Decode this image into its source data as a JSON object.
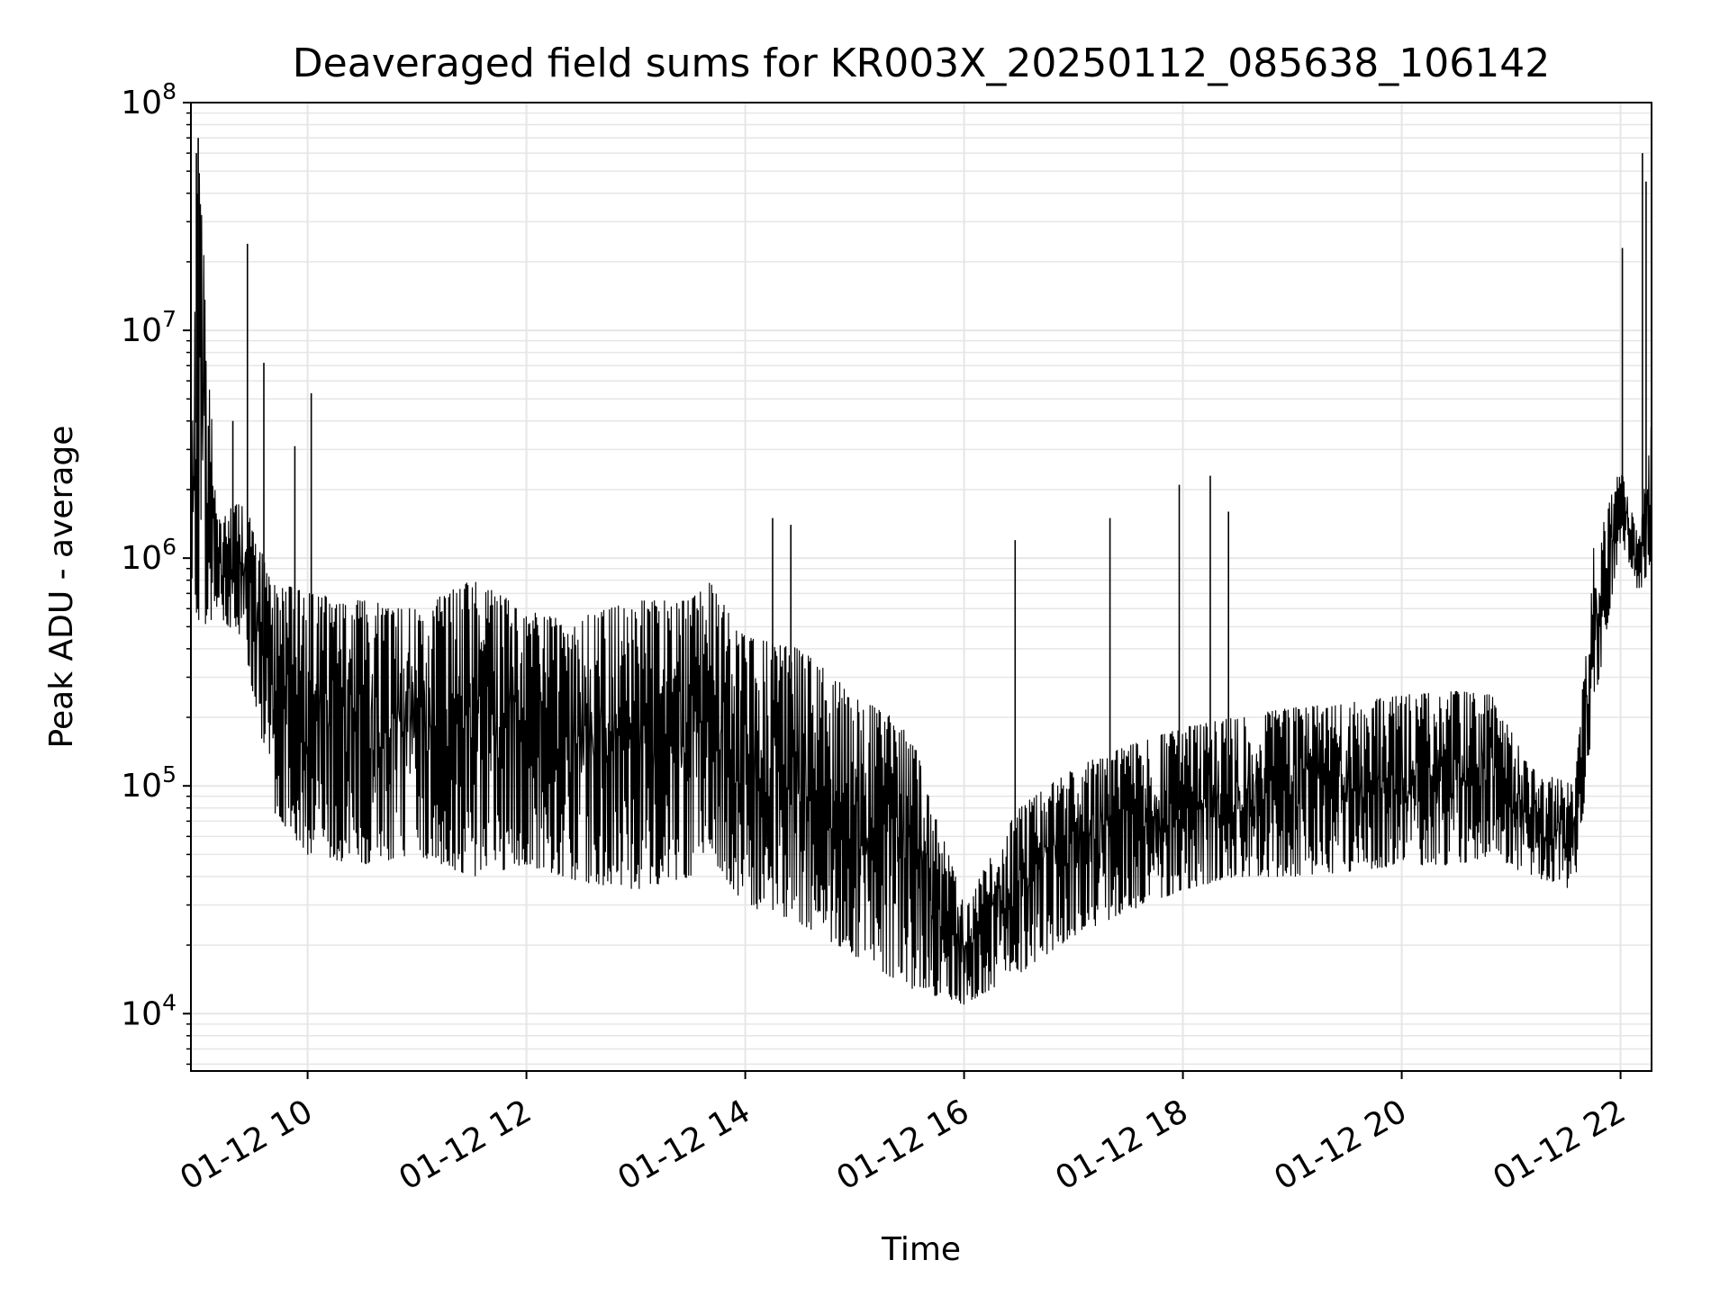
{
  "chart_data": {
    "type": "line",
    "title": "Deaveraged field sums for KR003X_20250112_085638_106142",
    "xlabel": "Time",
    "ylabel": "Peak ADU - average",
    "yscale": "log",
    "ylim": [
      5600,
      100000000
    ],
    "xlim": [
      "2025-01-12 08:56",
      "2025-01-12 22:17"
    ],
    "grid": true,
    "line_color": "#000000",
    "grid_color": "#e6e6e6",
    "x_ticks": [
      {
        "t": "2025-01-12 10:00",
        "label": "01-12 10"
      },
      {
        "t": "2025-01-12 12:00",
        "label": "01-12 12"
      },
      {
        "t": "2025-01-12 14:00",
        "label": "01-12 14"
      },
      {
        "t": "2025-01-12 16:00",
        "label": "01-12 16"
      },
      {
        "t": "2025-01-12 18:00",
        "label": "01-12 18"
      },
      {
        "t": "2025-01-12 20:00",
        "label": "01-12 20"
      },
      {
        "t": "2025-01-12 22:00",
        "label": "01-12 22"
      }
    ],
    "y_ticks": [
      {
        "value": 10000,
        "base": "10",
        "exp": "4"
      },
      {
        "value": 100000,
        "base": "10",
        "exp": "5"
      },
      {
        "value": 1000000,
        "base": "10",
        "exp": "6"
      },
      {
        "value": 10000000,
        "base": "10",
        "exp": "7"
      },
      {
        "value": 100000000,
        "base": "10",
        "exp": "8"
      }
    ],
    "series": [
      {
        "envelope": [
          {
            "t": "2025-01-12 08:56",
            "low": 900000,
            "high": 1700000
          },
          {
            "t": "2025-01-12 09:00",
            "low": 480000,
            "high": 70000000
          },
          {
            "t": "2025-01-12 09:10",
            "low": 550000,
            "high": 1500000
          },
          {
            "t": "2025-01-12 09:25",
            "low": 450000,
            "high": 1800000
          },
          {
            "t": "2025-01-12 09:40",
            "low": 80000,
            "high": 800000
          },
          {
            "t": "2025-01-12 10:00",
            "low": 50000,
            "high": 700000
          },
          {
            "t": "2025-01-12 10:30",
            "low": 45000,
            "high": 650000
          },
          {
            "t": "2025-01-12 11:00",
            "low": 50000,
            "high": 600000
          },
          {
            "t": "2025-01-12 11:30",
            "low": 40000,
            "high": 800000
          },
          {
            "t": "2025-01-12 12:00",
            "low": 45000,
            "high": 600000
          },
          {
            "t": "2025-01-12 12:30",
            "low": 38000,
            "high": 550000
          },
          {
            "t": "2025-01-12 13:00",
            "low": 35000,
            "high": 650000
          },
          {
            "t": "2025-01-12 13:30",
            "low": 40000,
            "high": 650000
          },
          {
            "t": "2025-01-12 13:40",
            "low": 50000,
            "high": 800000
          },
          {
            "t": "2025-01-12 14:00",
            "low": 30000,
            "high": 450000
          },
          {
            "t": "2025-01-12 14:30",
            "low": 25000,
            "high": 400000
          },
          {
            "t": "2025-01-12 15:00",
            "low": 18000,
            "high": 250000
          },
          {
            "t": "2025-01-12 15:30",
            "low": 13000,
            "high": 180000
          },
          {
            "t": "2025-01-12 16:00",
            "low": 11000,
            "high": 30000
          },
          {
            "t": "2025-01-12 16:30",
            "low": 15000,
            "high": 80000
          },
          {
            "t": "2025-01-12 17:00",
            "low": 22000,
            "high": 120000
          },
          {
            "t": "2025-01-12 17:30",
            "low": 28000,
            "high": 150000
          },
          {
            "t": "2025-01-12 18:00",
            "low": 35000,
            "high": 180000
          },
          {
            "t": "2025-01-12 18:30",
            "low": 40000,
            "high": 200000
          },
          {
            "t": "2025-01-12 19:00",
            "low": 40000,
            "high": 220000
          },
          {
            "t": "2025-01-12 19:30",
            "low": 42000,
            "high": 230000
          },
          {
            "t": "2025-01-12 20:00",
            "low": 45000,
            "high": 250000
          },
          {
            "t": "2025-01-12 20:30",
            "low": 45000,
            "high": 260000
          },
          {
            "t": "2025-01-12 20:50",
            "low": 50000,
            "high": 250000
          },
          {
            "t": "2025-01-12 21:10",
            "low": 40000,
            "high": 120000
          },
          {
            "t": "2025-01-12 21:35",
            "low": 35000,
            "high": 100000
          },
          {
            "t": "2025-01-12 21:45",
            "low": 200000,
            "high": 1100000
          },
          {
            "t": "2025-01-12 22:00",
            "low": 1200000,
            "high": 2500000
          },
          {
            "t": "2025-01-12 22:10",
            "low": 700000,
            "high": 1200000
          },
          {
            "t": "2025-01-12 22:17",
            "low": 900000,
            "high": 4000000
          }
        ],
        "spikes": [
          {
            "t": "2025-01-12 08:59",
            "value": 60000000
          },
          {
            "t": "2025-01-12 09:00",
            "value": 70000000
          },
          {
            "t": "2025-01-12 09:27",
            "value": 24000000
          },
          {
            "t": "2025-01-12 09:36",
            "value": 7200000
          },
          {
            "t": "2025-01-12 09:19",
            "value": 4000000
          },
          {
            "t": "2025-01-12 09:53",
            "value": 3100000
          },
          {
            "t": "2025-01-12 10:02",
            "value": 5300000
          },
          {
            "t": "2025-01-12 14:15",
            "value": 1500000
          },
          {
            "t": "2025-01-12 14:25",
            "value": 1400000
          },
          {
            "t": "2025-01-12 16:28",
            "value": 1200000
          },
          {
            "t": "2025-01-12 17:20",
            "value": 1500000
          },
          {
            "t": "2025-01-12 17:58",
            "value": 2100000
          },
          {
            "t": "2025-01-12 18:15",
            "value": 2300000
          },
          {
            "t": "2025-01-12 18:25",
            "value": 1600000
          },
          {
            "t": "2025-01-12 22:01",
            "value": 23000000
          },
          {
            "t": "2025-01-12 22:12",
            "value": 60000000
          },
          {
            "t": "2025-01-12 22:14",
            "value": 45000000
          }
        ]
      }
    ]
  }
}
